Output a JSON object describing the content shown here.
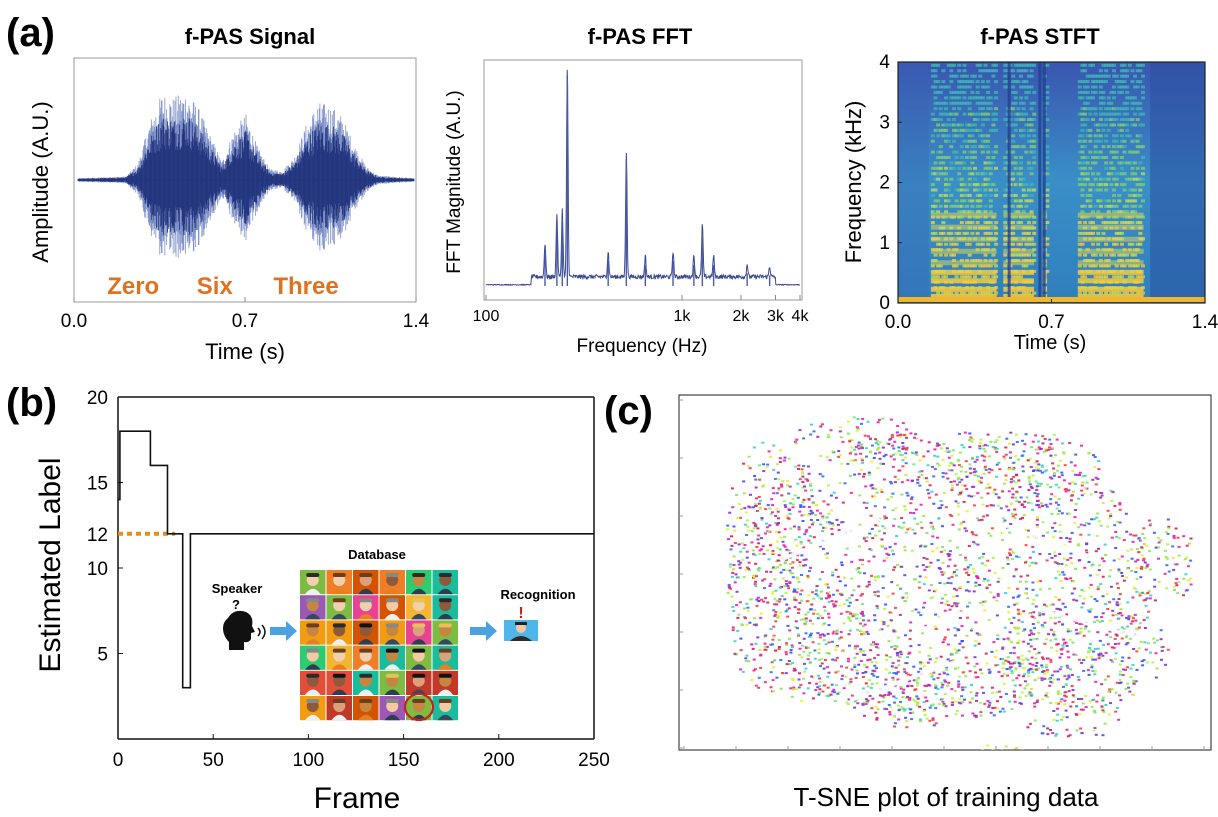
{
  "panel_labels": {
    "a": "(a)",
    "b": "(b)",
    "c": "(c)"
  },
  "colors": {
    "waveform": "#24367e",
    "words": "#e0711f",
    "dashed": "#e0901f",
    "step": "#111111",
    "arrow": "#4aa3df",
    "highlight": "#cc1f1f"
  },
  "chart_data": [
    {
      "id": "signal",
      "type": "area",
      "title": "f-PAS Signal",
      "xlabel": "Time (s)",
      "ylabel": "Amplitude (A.U.)",
      "xlim": [
        0,
        1.4
      ],
      "xticks": [
        "0.0",
        "0.7",
        "1.4"
      ],
      "x": [
        0.0,
        0.2,
        0.25,
        0.3,
        0.35,
        0.4,
        0.45,
        0.5,
        0.55,
        0.6,
        0.65,
        0.7,
        0.75,
        0.8,
        0.85,
        0.9,
        0.95,
        1.0,
        1.05,
        1.1,
        1.15,
        1.2,
        1.25,
        1.4
      ],
      "envelope": [
        0.02,
        0.04,
        0.18,
        0.65,
        0.95,
        0.9,
        0.98,
        0.8,
        0.5,
        0.2,
        0.55,
        0.72,
        0.35,
        0.12,
        0.1,
        0.25,
        0.6,
        0.85,
        0.82,
        0.7,
        0.4,
        0.15,
        0.05,
        0.02
      ],
      "annotations": [
        "Zero",
        "Six",
        "Three"
      ],
      "annotation_x": [
        0.48,
        0.82,
        1.2
      ]
    },
    {
      "id": "fft",
      "type": "line",
      "title": "f-PAS FFT",
      "xlabel": "Frequency (Hz)",
      "ylabel": "FFT Magnitude (A.U.)",
      "xscale": "log",
      "xlim": [
        100,
        4000
      ],
      "xticks": [
        "100",
        "1k",
        "2k",
        "3k",
        "4k"
      ],
      "xtick_values": [
        100,
        1000,
        2000,
        3000,
        4000
      ],
      "peaks": [
        {
          "f": 200,
          "a": 0.16
        },
        {
          "f": 230,
          "a": 0.3
        },
        {
          "f": 245,
          "a": 0.32
        },
        {
          "f": 260,
          "a": 1.0
        },
        {
          "f": 420,
          "a": 0.12
        },
        {
          "f": 520,
          "a": 0.6
        },
        {
          "f": 650,
          "a": 0.1
        },
        {
          "f": 900,
          "a": 0.12
        },
        {
          "f": 1150,
          "a": 0.1
        },
        {
          "f": 1270,
          "a": 0.25
        },
        {
          "f": 1450,
          "a": 0.1
        },
        {
          "f": 2150,
          "a": 0.06
        },
        {
          "f": 2800,
          "a": 0.05
        }
      ]
    },
    {
      "id": "stft",
      "type": "heatmap",
      "title": "f-PAS STFT",
      "xlabel": "Time (s)",
      "ylabel": "Frequency (kHz)",
      "xlim": [
        0,
        1.4
      ],
      "ylim": [
        0,
        4
      ],
      "xticks": [
        "0.0",
        "0.7",
        "1.4"
      ],
      "yticks": [
        "0",
        "1",
        "2",
        "3",
        "4"
      ]
    },
    {
      "id": "label",
      "type": "line",
      "xlabel": "Frame",
      "ylabel": "Estimated Label",
      "xlim": [
        0,
        250
      ],
      "ylim": [
        0,
        20
      ],
      "xticks": [
        "0",
        "50",
        "100",
        "150",
        "200",
        "250"
      ],
      "xtick_values": [
        0,
        50,
        100,
        150,
        200,
        250
      ],
      "yticks": [
        "5",
        "10",
        "12",
        "15",
        "20"
      ],
      "ytick_values": [
        5,
        10,
        12,
        15,
        20
      ],
      "x": [
        0,
        1,
        1,
        17,
        17,
        26,
        26,
        28,
        28,
        34,
        34,
        38,
        38,
        250
      ],
      "y": [
        14,
        14,
        18,
        18,
        16,
        16,
        12,
        12,
        12,
        12,
        3,
        3,
        12,
        12
      ],
      "reference_line": {
        "y": 12,
        "x_range": [
          0,
          30
        ]
      }
    },
    {
      "id": "tsne",
      "type": "scatter",
      "caption": "T-SNE plot of training data"
    }
  ],
  "inset": {
    "database_label": "Database",
    "speaker_label": "Speaker",
    "speaker_mark": "?",
    "recognition_label": "Recognition",
    "recognition_mark": "!"
  }
}
